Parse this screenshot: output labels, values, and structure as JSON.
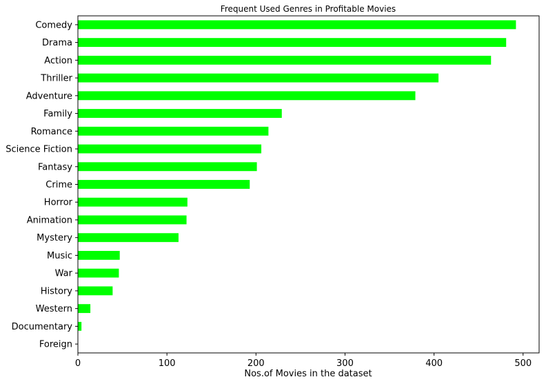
{
  "chart_data": {
    "type": "bar",
    "orientation": "horizontal",
    "title": "Frequent Used Genres in Profitable Movies",
    "xlabel": "Nos.of Movies in the dataset",
    "ylabel": "",
    "xlim": [
      0,
      518
    ],
    "xticks": [
      0,
      100,
      200,
      300,
      400,
      500
    ],
    "grid": false,
    "bar_color": "#00ff00",
    "categories": [
      "Comedy",
      "Drama",
      "Action",
      "Thriller",
      "Adventure",
      "Family",
      "Romance",
      "Science Fiction",
      "Fantasy",
      "Crime",
      "Horror",
      "Animation",
      "Mystery",
      "Music",
      "War",
      "History",
      "Western",
      "Documentary",
      "Foreign"
    ],
    "values": [
      492,
      481,
      464,
      405,
      379,
      229,
      214,
      206,
      201,
      193,
      123,
      122,
      113,
      47,
      46,
      39,
      14,
      4,
      0
    ]
  }
}
